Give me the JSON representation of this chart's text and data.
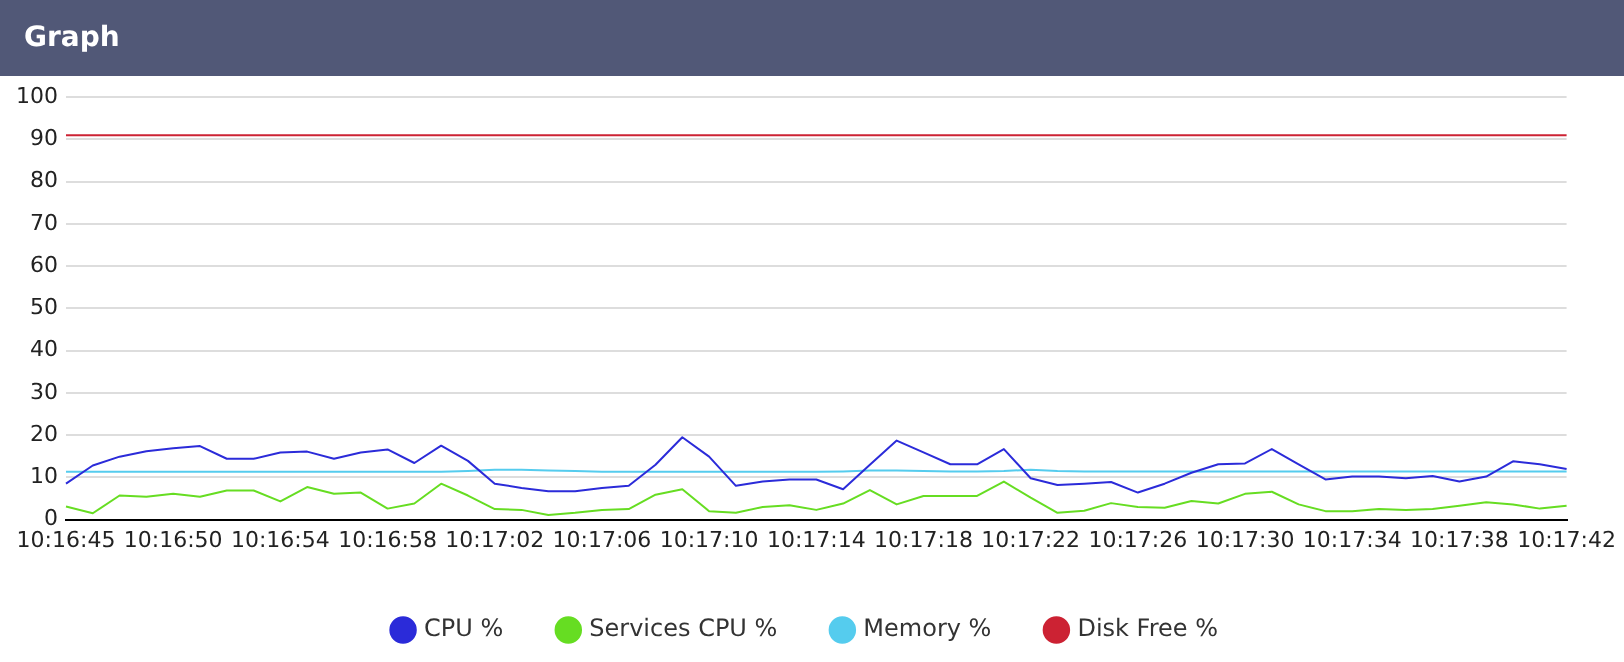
{
  "chart_data": {
    "type": "line",
    "title": "Graph",
    "categories": [
      "10:16:45",
      null,
      null,
      null,
      "10:16:50",
      null,
      null,
      null,
      "10:16:54",
      null,
      null,
      null,
      "10:16:58",
      null,
      null,
      null,
      "10:17:02",
      null,
      null,
      null,
      "10:17:06",
      null,
      null,
      null,
      "10:17:10",
      null,
      null,
      null,
      "10:17:14",
      null,
      null,
      null,
      "10:17:18",
      null,
      null,
      null,
      "10:17:22",
      null,
      null,
      null,
      "10:17:26",
      null,
      null,
      null,
      "10:17:30",
      null,
      null,
      null,
      "10:17:34",
      null,
      null,
      null,
      "10:17:38",
      null,
      null,
      null,
      "10:17:42"
    ],
    "series": [
      {
        "name": "CPU %",
        "color": "#2b2bd9",
        "values": [
          8.5,
          12.8,
          14.9,
          16.2,
          16.9,
          17.4,
          14.4,
          14.4,
          15.9,
          16.1,
          14.4,
          15.9,
          16.6,
          13.4,
          17.5,
          13.9,
          8.5,
          7.5,
          6.7,
          6.7,
          7.5,
          8.0,
          13,
          19.5,
          14.9,
          8.0,
          9.0,
          9.5,
          9.5,
          7.2,
          13,
          18.7,
          15.9,
          13.1,
          13.1,
          16.7,
          9.8,
          8.2,
          8.5,
          8.9,
          6.4,
          8.5,
          11.1,
          13.1,
          13.3,
          16.7,
          13.1,
          9.5,
          10.2,
          10.2,
          9.8,
          10.3,
          9.0,
          10.2,
          13.8,
          13.1,
          12.0
        ]
      },
      {
        "name": "Services CPU %",
        "color": "#66dd22",
        "values": [
          3.1,
          1.5,
          5.7,
          5.4,
          6.1,
          5.4,
          6.9,
          6.9,
          4.3,
          7.7,
          6.1,
          6.4,
          2.6,
          3.8,
          8.5,
          5.7,
          2.5,
          2.3,
          1.1,
          1.6,
          2.3,
          2.5,
          5.9,
          7.2,
          2.0,
          1.6,
          3.0,
          3.4,
          2.3,
          3.8,
          7.0,
          3.6,
          5.6,
          5.6,
          5.6,
          9.0,
          5.2,
          1.6,
          2.1,
          3.9,
          3.0,
          2.8,
          4.4,
          3.8,
          6.1,
          6.6,
          3.6,
          2.0,
          2.0,
          2.5,
          2.3,
          2.5,
          3.3,
          4.1,
          3.6,
          2.6,
          3.3
        ]
      },
      {
        "name": "Memory %",
        "color": "#55ccee",
        "values": [
          11.3,
          11.3,
          11.3,
          11.3,
          11.3,
          11.3,
          11.3,
          11.3,
          11.3,
          11.3,
          11.3,
          11.3,
          11.3,
          11.3,
          11.3,
          11.5,
          11.8,
          11.8,
          11.6,
          11.5,
          11.3,
          11.3,
          11.3,
          11.3,
          11.3,
          11.3,
          11.3,
          11.3,
          11.3,
          11.4,
          11.6,
          11.6,
          11.5,
          11.4,
          11.4,
          11.5,
          11.8,
          11.5,
          11.4,
          11.4,
          11.4,
          11.4,
          11.4,
          11.4,
          11.4,
          11.4,
          11.4,
          11.4,
          11.4,
          11.4,
          11.4,
          11.4,
          11.4,
          11.4,
          11.4,
          11.4,
          11.4
        ]
      },
      {
        "name": "Disk Free %",
        "color": "#cc2233",
        "values": [
          91,
          91,
          91,
          91,
          91,
          91,
          91,
          91,
          91,
          91,
          91,
          91,
          91,
          91,
          91,
          91,
          91,
          91,
          91,
          91,
          91,
          91,
          91,
          91,
          91,
          91,
          91,
          91,
          91,
          91,
          91,
          91,
          91,
          91,
          91,
          91,
          91,
          91,
          91,
          91,
          91,
          91,
          91,
          91,
          91,
          91,
          91,
          91,
          91,
          91,
          91,
          91,
          91,
          91,
          91,
          91,
          91
        ]
      }
    ],
    "ylim": [
      0,
      100
    ],
    "yticks": [
      0,
      10,
      20,
      30,
      40,
      50,
      60,
      70,
      80,
      90,
      100
    ],
    "grid": "y",
    "legend": "bottom",
    "marker": "none"
  }
}
